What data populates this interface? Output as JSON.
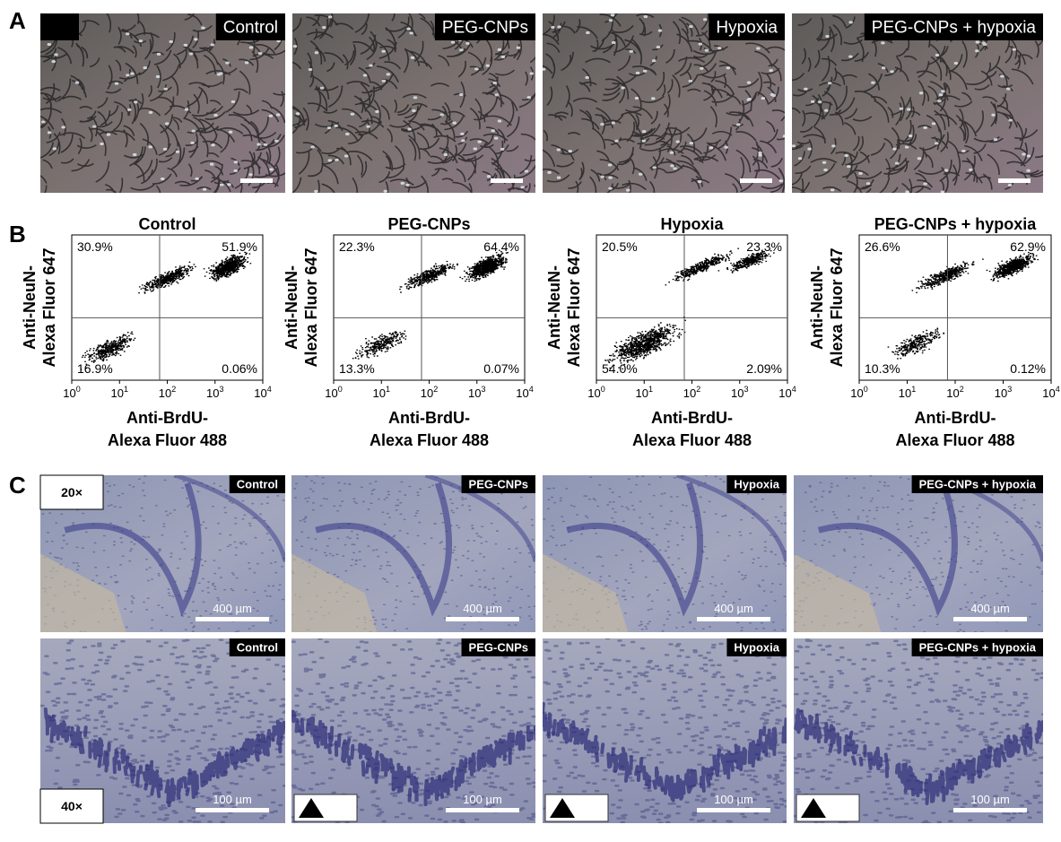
{
  "panel_a": {
    "label": "A",
    "images": [
      "Control",
      "PEG-CNPs",
      "Hypoxia",
      "PEG-CNPs + hypoxia"
    ]
  },
  "panel_b": {
    "label": "B",
    "y_label": [
      "Anti-NeuN-",
      "Alexa Fluor 647"
    ],
    "x_label": [
      "Anti-BrdU-",
      "Alexa Fluor 488"
    ],
    "x_ticks": [
      {
        "base": "10",
        "exponent": "0"
      },
      {
        "base": "10",
        "exponent": "1"
      },
      {
        "base": "10",
        "exponent": "2"
      },
      {
        "base": "10",
        "exponent": "3"
      },
      {
        "base": "10",
        "exponent": "4"
      }
    ],
    "plots": [
      {
        "title": "Control",
        "quadrants": [
          "30.9%",
          "51.9%",
          "16.9%",
          "0.06%"
        ]
      },
      {
        "title": "PEG-CNPs",
        "quadrants": [
          "22.3%",
          "64.4%",
          "13.3%",
          "0.07%"
        ]
      },
      {
        "title": "Hypoxia",
        "quadrants": [
          "20.5%",
          "23.3%",
          "54.0%",
          "2.09%"
        ]
      },
      {
        "title": "PEG-CNPs + hypoxia",
        "quadrants": [
          "26.6%",
          "62.9%",
          "10.3%",
          "0.12%"
        ]
      }
    ]
  },
  "panel_c": {
    "label": "C",
    "rows": [
      {
        "magnification": "20×",
        "scale": "400 µm",
        "images": [
          "Control",
          "PEG-CNPs",
          "Hypoxia",
          "PEG-CNPs + hypoxia"
        ]
      },
      {
        "magnification": "40×",
        "scale": "100 µm",
        "images": [
          "Control",
          "PEG-CNPs",
          "Hypoxia",
          "PEG-CNPs + hypoxia"
        ]
      }
    ]
  }
}
